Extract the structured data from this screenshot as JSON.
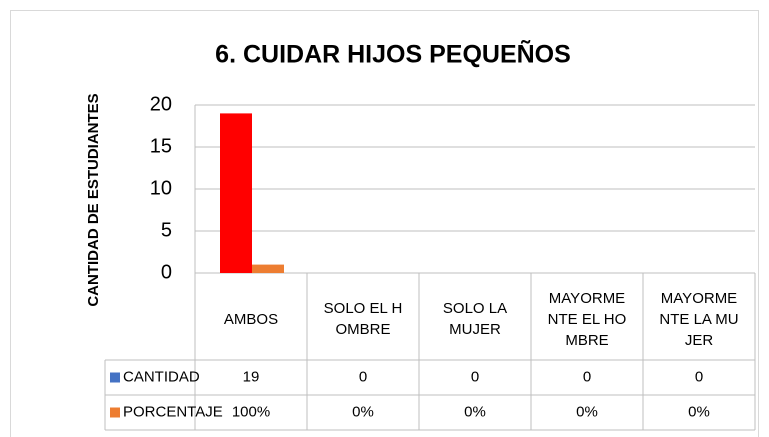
{
  "chart_data": {
    "type": "bar",
    "title": "6. CUIDAR HIJOS PEQUEÑOS",
    "y_label": "CANTIDAD DE ESTUDIANTES",
    "categories": [
      "AMBOS",
      "SOLO EL HOMBRE",
      "SOLO LA MUJER",
      "MAYORMENTE EL HOMBRE",
      "MAYORMENTE LA MUJER"
    ],
    "series": [
      {
        "name": "CANTIDAD",
        "color": "#4472c4",
        "point_colors": [
          "#ff0000",
          "#ff0000",
          "#ff0000",
          "#ff0000",
          "#ff0000"
        ],
        "values": [
          19,
          0,
          0,
          0,
          0
        ]
      },
      {
        "name": "PORCENTAJE",
        "color": "#ed7d31",
        "values": [
          1,
          0,
          0,
          0,
          0
        ],
        "value_labels": [
          "100%",
          "0%",
          "0%",
          "0%",
          "0%"
        ]
      }
    ],
    "ylim": [
      0,
      20
    ],
    "yticks": [
      0,
      5,
      10,
      15,
      20
    ],
    "grid": true,
    "data_table": true
  }
}
